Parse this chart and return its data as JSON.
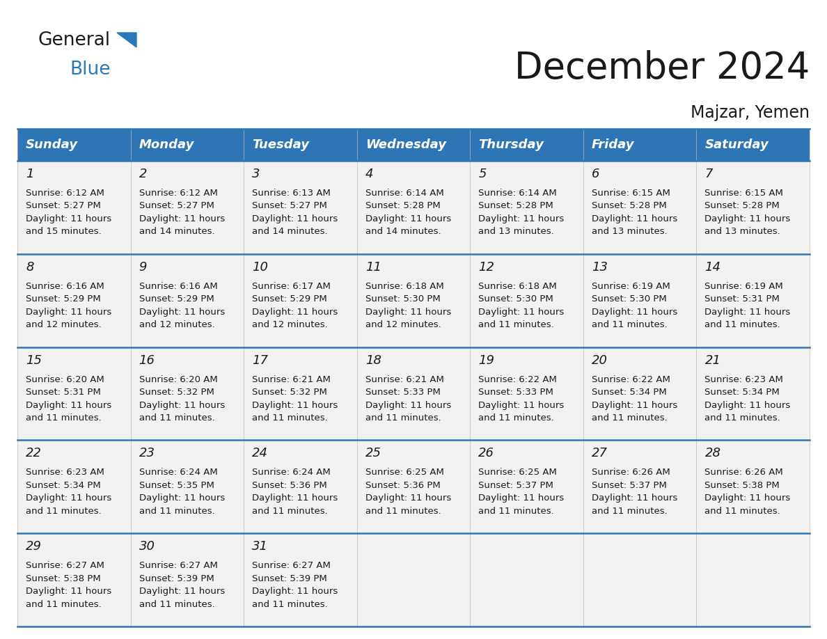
{
  "title": "December 2024",
  "subtitle": "Majzar, Yemen",
  "header_color": "#2E75B6",
  "header_text_color": "#FFFFFF",
  "cell_bg_color": "#F2F2F2",
  "day_names": [
    "Sunday",
    "Monday",
    "Tuesday",
    "Wednesday",
    "Thursday",
    "Friday",
    "Saturday"
  ],
  "weeks": [
    [
      {
        "day": "1",
        "sunrise": "6:12 AM",
        "sunset": "5:27 PM",
        "daylight": "11 hours",
        "daylight2": "and 15 minutes."
      },
      {
        "day": "2",
        "sunrise": "6:12 AM",
        "sunset": "5:27 PM",
        "daylight": "11 hours",
        "daylight2": "and 14 minutes."
      },
      {
        "day": "3",
        "sunrise": "6:13 AM",
        "sunset": "5:27 PM",
        "daylight": "11 hours",
        "daylight2": "and 14 minutes."
      },
      {
        "day": "4",
        "sunrise": "6:14 AM",
        "sunset": "5:28 PM",
        "daylight": "11 hours",
        "daylight2": "and 14 minutes."
      },
      {
        "day": "5",
        "sunrise": "6:14 AM",
        "sunset": "5:28 PM",
        "daylight": "11 hours",
        "daylight2": "and 13 minutes."
      },
      {
        "day": "6",
        "sunrise": "6:15 AM",
        "sunset": "5:28 PM",
        "daylight": "11 hours",
        "daylight2": "and 13 minutes."
      },
      {
        "day": "7",
        "sunrise": "6:15 AM",
        "sunset": "5:28 PM",
        "daylight": "11 hours",
        "daylight2": "and 13 minutes."
      }
    ],
    [
      {
        "day": "8",
        "sunrise": "6:16 AM",
        "sunset": "5:29 PM",
        "daylight": "11 hours",
        "daylight2": "and 12 minutes."
      },
      {
        "day": "9",
        "sunrise": "6:16 AM",
        "sunset": "5:29 PM",
        "daylight": "11 hours",
        "daylight2": "and 12 minutes."
      },
      {
        "day": "10",
        "sunrise": "6:17 AM",
        "sunset": "5:29 PM",
        "daylight": "11 hours",
        "daylight2": "and 12 minutes."
      },
      {
        "day": "11",
        "sunrise": "6:18 AM",
        "sunset": "5:30 PM",
        "daylight": "11 hours",
        "daylight2": "and 12 minutes."
      },
      {
        "day": "12",
        "sunrise": "6:18 AM",
        "sunset": "5:30 PM",
        "daylight": "11 hours",
        "daylight2": "and 11 minutes."
      },
      {
        "day": "13",
        "sunrise": "6:19 AM",
        "sunset": "5:30 PM",
        "daylight": "11 hours",
        "daylight2": "and 11 minutes."
      },
      {
        "day": "14",
        "sunrise": "6:19 AM",
        "sunset": "5:31 PM",
        "daylight": "11 hours",
        "daylight2": "and 11 minutes."
      }
    ],
    [
      {
        "day": "15",
        "sunrise": "6:20 AM",
        "sunset": "5:31 PM",
        "daylight": "11 hours",
        "daylight2": "and 11 minutes."
      },
      {
        "day": "16",
        "sunrise": "6:20 AM",
        "sunset": "5:32 PM",
        "daylight": "11 hours",
        "daylight2": "and 11 minutes."
      },
      {
        "day": "17",
        "sunrise": "6:21 AM",
        "sunset": "5:32 PM",
        "daylight": "11 hours",
        "daylight2": "and 11 minutes."
      },
      {
        "day": "18",
        "sunrise": "6:21 AM",
        "sunset": "5:33 PM",
        "daylight": "11 hours",
        "daylight2": "and 11 minutes."
      },
      {
        "day": "19",
        "sunrise": "6:22 AM",
        "sunset": "5:33 PM",
        "daylight": "11 hours",
        "daylight2": "and 11 minutes."
      },
      {
        "day": "20",
        "sunrise": "6:22 AM",
        "sunset": "5:34 PM",
        "daylight": "11 hours",
        "daylight2": "and 11 minutes."
      },
      {
        "day": "21",
        "sunrise": "6:23 AM",
        "sunset": "5:34 PM",
        "daylight": "11 hours",
        "daylight2": "and 11 minutes."
      }
    ],
    [
      {
        "day": "22",
        "sunrise": "6:23 AM",
        "sunset": "5:34 PM",
        "daylight": "11 hours",
        "daylight2": "and 11 minutes."
      },
      {
        "day": "23",
        "sunrise": "6:24 AM",
        "sunset": "5:35 PM",
        "daylight": "11 hours",
        "daylight2": "and 11 minutes."
      },
      {
        "day": "24",
        "sunrise": "6:24 AM",
        "sunset": "5:36 PM",
        "daylight": "11 hours",
        "daylight2": "and 11 minutes."
      },
      {
        "day": "25",
        "sunrise": "6:25 AM",
        "sunset": "5:36 PM",
        "daylight": "11 hours",
        "daylight2": "and 11 minutes."
      },
      {
        "day": "26",
        "sunrise": "6:25 AM",
        "sunset": "5:37 PM",
        "daylight": "11 hours",
        "daylight2": "and 11 minutes."
      },
      {
        "day": "27",
        "sunrise": "6:26 AM",
        "sunset": "5:37 PM",
        "daylight": "11 hours",
        "daylight2": "and 11 minutes."
      },
      {
        "day": "28",
        "sunrise": "6:26 AM",
        "sunset": "5:38 PM",
        "daylight": "11 hours",
        "daylight2": "and 11 minutes."
      }
    ],
    [
      {
        "day": "29",
        "sunrise": "6:27 AM",
        "sunset": "5:38 PM",
        "daylight": "11 hours",
        "daylight2": "and 11 minutes."
      },
      {
        "day": "30",
        "sunrise": "6:27 AM",
        "sunset": "5:39 PM",
        "daylight": "11 hours",
        "daylight2": "and 11 minutes."
      },
      {
        "day": "31",
        "sunrise": "6:27 AM",
        "sunset": "5:39 PM",
        "daylight": "11 hours",
        "daylight2": "and 11 minutes."
      },
      null,
      null,
      null,
      null
    ]
  ],
  "logo_color1": "#1a1a1a",
  "logo_color2": "#2979B8",
  "title_fontsize": 38,
  "subtitle_fontsize": 17,
  "header_fontsize": 13,
  "day_num_fontsize": 13,
  "cell_text_fontsize": 9.5,
  "line_color": "#2E75B6",
  "bg_color": "#FFFFFF"
}
